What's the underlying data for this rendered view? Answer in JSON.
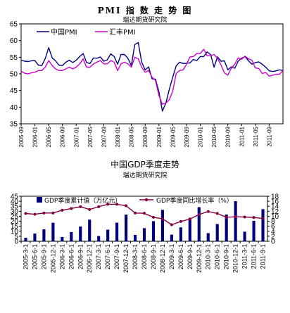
{
  "charts": {
    "pmi": {
      "title": "PMI 指 数 走 势 图",
      "subtitle": "瑞达期货研究院"
    },
    "gdp": {
      "title": "中国GDP季度走势",
      "subtitle": "瑞达期货研究院"
    }
  },
  "chart_data": [
    {
      "type": "line",
      "title": "PMI 指 数 走 势 图",
      "subtitle": "瑞达期货研究院",
      "xlabel": "",
      "ylabel": "",
      "ylim": [
        35,
        65
      ],
      "yticks": [
        35,
        40,
        45,
        50,
        55,
        60,
        65
      ],
      "xticks": [
        "2005-09",
        "2006-01",
        "2006-05",
        "2006-09",
        "2007-01",
        "2007-05",
        "2007-09",
        "2008-01",
        "2008-05",
        "2008-09",
        "2009-01",
        "2009-05",
        "2009-09",
        "2010-01",
        "2010-05",
        "2010-09",
        "2011-01",
        "2011-05",
        "2011-09"
      ],
      "legend": "top-left",
      "grid": false,
      "series": [
        {
          "name": "中国PMI",
          "color": "#000080",
          "values": [
            54.1,
            53.8,
            53.7,
            53.9,
            54.0,
            52.6,
            52.5,
            54.6,
            57.9,
            54.8,
            53.9,
            52.6,
            52.5,
            53.5,
            54.1,
            53.4,
            54.1,
            55.2,
            56.1,
            53.4,
            53.1,
            54.8,
            54.7,
            55.1,
            53.8,
            54.2,
            56.0,
            55.2,
            52.9,
            55.8,
            55.8,
            54.7,
            52.5,
            58.8,
            59.4,
            53.5,
            51.2,
            52.1,
            48.5,
            48.4,
            44.6,
            38.8,
            41.2,
            45.3,
            49.0,
            52.4,
            53.5,
            53.1,
            53.2,
            53.3,
            54.3,
            54.0,
            55.2,
            55.2,
            56.6,
            55.8,
            52.0,
            55.1,
            53.8,
            53.9,
            51.2,
            52.1,
            51.7,
            53.8,
            54.7,
            55.2,
            53.9,
            52.9,
            53.4,
            53.6,
            52.9,
            52.0,
            50.9,
            50.7,
            50.9,
            51.2,
            51.0
          ]
        },
        {
          "name": "汇丰PMI",
          "color": "#cc00cc",
          "values": [
            50.8,
            50.2,
            50.0,
            50.3,
            50.5,
            51.0,
            51.0,
            52.0,
            54.0,
            52.5,
            51.5,
            51.0,
            51.0,
            51.5,
            52.0,
            51.5,
            52.0,
            53.0,
            54.5,
            52.0,
            52.0,
            53.0,
            53.5,
            54.0,
            53.0,
            53.0,
            54.0,
            53.5,
            51.0,
            53.0,
            53.5,
            53.0,
            52.0,
            55.0,
            54.5,
            52.0,
            50.5,
            51.0,
            49.0,
            48.0,
            43.5,
            40.9,
            41.2,
            42.2,
            44.8,
            50.1,
            51.0,
            51.2,
            52.8,
            55.1,
            55.2,
            56.1,
            56.1,
            57.4,
            55.4,
            55.5,
            55.8,
            54.7,
            52.7,
            50.3,
            49.6,
            51.7,
            52.9,
            54.8,
            54.4,
            55.3,
            54.5,
            54.1,
            51.8,
            51.6,
            50.1,
            50.4,
            49.3,
            49.6,
            49.9,
            49.9,
            51.0
          ]
        }
      ]
    },
    {
      "type": "bar",
      "title": "中国GDP季度走势",
      "subtitle": "瑞达期货研究院",
      "xlabel": "",
      "ylabel": "",
      "ylim": [
        0,
        45
      ],
      "yticks": [
        0,
        5,
        10,
        15,
        20,
        25,
        30,
        35,
        40,
        45
      ],
      "ylim_right": [
        0,
        18
      ],
      "yticks_right": [
        0,
        2,
        4,
        6,
        8,
        10,
        12,
        14,
        16,
        18
      ],
      "legend": "top",
      "categories": [
        "2005-3-1",
        "2005-6-1",
        "2005-9-1",
        "2005-12-1",
        "2006-3-1",
        "2006-6-1",
        "2006-9-1",
        "2006-12-1",
        "2007-3-1",
        "2007-6-1",
        "2007-9-1",
        "2007-12-1",
        "2008-3-1",
        "2008-6-1",
        "2008-9-1",
        "2008-12-1",
        "2009-3-1",
        "2009-6-1",
        "2009-9-1",
        "2009-12-1",
        "2010-3-1",
        "2010-6-1",
        "2010-9-1",
        "2010-12-1",
        "2011-3-1",
        "2011-6-1",
        "2011-9-1"
      ],
      "xtick_labels": [
        "2005-3-1",
        "2005-6-1",
        "2005-9-1",
        "2005-12-1",
        "2006-3-1",
        "2006-6-1",
        "2006-9-1",
        "2006-12-1",
        "2007-3-1",
        "2007-6-1",
        "2007-9-1",
        "2007-12-1",
        "2008-3-1",
        "2008-6-1",
        "2008-9-1",
        "2008-12-1",
        "2009-3-1",
        "2009-6-1",
        "2009-9-1",
        "2009-12-1",
        "2010-3-1",
        "2010-6-1",
        "2010-9-1",
        "2010-12-1",
        "2011-3-1",
        "2011-6-1",
        "2011-9-1"
      ],
      "series": [
        {
          "name": "GDP季度累计值（万亿元）",
          "type": "bar",
          "axis": "left",
          "color": "#00007f",
          "values": [
            3.5,
            7.7,
            12.0,
            18.5,
            4.3,
            9.2,
            14.7,
            21.6,
            5.2,
            11.6,
            18.6,
            26.6,
            6.3,
            13.1,
            20.1,
            31.4,
            6.6,
            13.9,
            21.8,
            34.1,
            8.1,
            17.2,
            26.7,
            40.1,
            9.6,
            20.4,
            32.1
          ]
        },
        {
          "name": "GDP季度同比增长率（%）",
          "type": "line",
          "axis": "right",
          "color": "#800040",
          "values": [
            11.1,
            10.8,
            11.3,
            11.3,
            12.4,
            13.1,
            13.8,
            12.7,
            13.8,
            14.8,
            14.8,
            14.2,
            11.3,
            11.2,
            9.6,
            9.0,
            6.6,
            7.9,
            8.9,
            10.7,
            11.9,
            11.1,
            9.6,
            9.8,
            9.7,
            9.5,
            9.1
          ]
        }
      ]
    }
  ]
}
